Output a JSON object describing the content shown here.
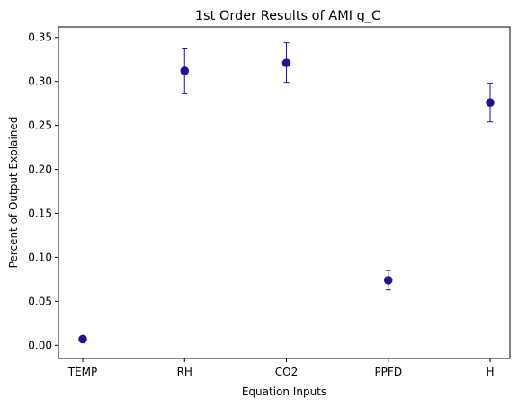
{
  "chart_data": {
    "type": "scatter",
    "title": "1st Order Results of AMI g_C",
    "xlabel": "Equation Inputs",
    "ylabel": "Percent of Output Explained",
    "categories": [
      "TEMP",
      "RH",
      "CO2",
      "PPFD",
      "H"
    ],
    "series": [
      {
        "values": [
          0.007,
          0.312,
          0.321,
          0.074,
          0.276
        ],
        "error_low": [
          0.007,
          0.286,
          0.299,
          0.063,
          0.254
        ],
        "error_high": [
          0.007,
          0.338,
          0.344,
          0.085,
          0.298
        ],
        "color": "#2a0f8c"
      }
    ],
    "ylim": [
      -0.015,
      0.362
    ],
    "yticks": [
      0.0,
      0.05,
      0.1,
      0.15,
      0.2,
      0.25,
      0.3,
      0.35
    ],
    "ytick_labels": [
      "0.00",
      "0.05",
      "0.10",
      "0.15",
      "0.20",
      "0.25",
      "0.30",
      "0.35"
    ],
    "grid": false,
    "legend": "none"
  }
}
